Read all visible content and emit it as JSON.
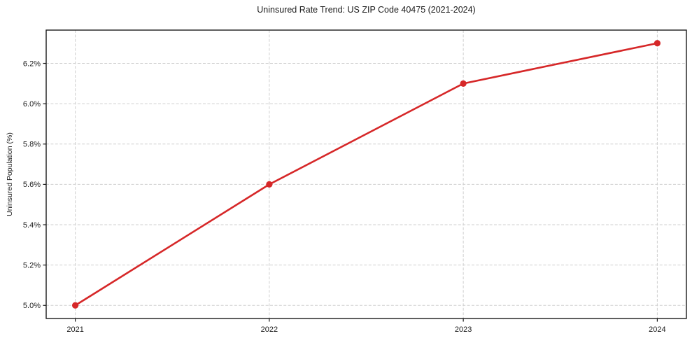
{
  "chart_data": {
    "type": "line",
    "title": "Uninsured Rate Trend: US ZIP Code 40475 (2021-2024)",
    "xlabel": "",
    "ylabel": "Uninsured Population (%)",
    "x": [
      2021,
      2022,
      2023,
      2024
    ],
    "values": [
      5.0,
      5.6,
      6.1,
      6.3
    ],
    "x_tick_labels": [
      "2021",
      "2022",
      "2023",
      "2024"
    ],
    "y_ticks": [
      5.0,
      5.2,
      5.4,
      5.6,
      5.8,
      6.0,
      6.2
    ],
    "y_tick_labels": [
      "5.0%",
      "5.2%",
      "5.4%",
      "5.6%",
      "5.8%",
      "6.0%",
      "6.2%"
    ],
    "xlim": [
      2020.85,
      2024.15
    ],
    "ylim": [
      4.935,
      6.365
    ],
    "grid": true,
    "grid_style": "dashed",
    "legend_position": "none",
    "line_color": "#d62728",
    "marker_color": "#d62728",
    "grid_color": "#cfcfcf",
    "axis_color": "#1a1a1a"
  }
}
